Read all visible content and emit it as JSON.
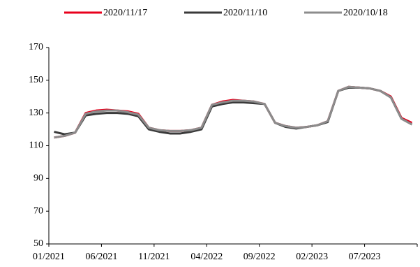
{
  "chart_data": {
    "type": "line",
    "categories": [
      "01/2021",
      null,
      null,
      null,
      null,
      "06/2021",
      null,
      null,
      null,
      null,
      "11/2021",
      null,
      null,
      null,
      null,
      "04/2022",
      null,
      null,
      null,
      null,
      "09/2022",
      null,
      null,
      null,
      null,
      "02/2023",
      null,
      null,
      null,
      null,
      "07/2023",
      null,
      null,
      null,
      null
    ],
    "series": [
      {
        "name": "2020/11/17",
        "color": "#e8001c",
        "values": [
          115,
          116,
          118,
          130,
          131.5,
          132,
          131.5,
          131,
          129.5,
          121,
          119.5,
          119,
          119,
          119.5,
          121,
          135,
          137,
          138,
          137.5,
          137,
          135.5,
          124,
          122,
          121,
          121.5,
          122.5,
          125,
          143.5,
          146,
          145.5,
          145,
          143.5,
          140,
          127,
          124
        ]
      },
      {
        "name": "2020/11/10",
        "color": "#3a3a3a",
        "values": [
          118.5,
          117,
          118,
          128.5,
          129.5,
          130,
          130,
          129.5,
          128,
          120,
          118.5,
          117.5,
          117.5,
          118.5,
          120,
          134,
          135.5,
          136.5,
          136.5,
          136,
          135.5,
          124,
          121.5,
          120.5,
          121.5,
          122.5,
          124.5,
          143.5,
          145.5,
          145.5,
          145,
          143.5,
          139.5,
          126.5,
          123
        ]
      },
      {
        "name": "2020/10/18",
        "color": "#8c8c8c",
        "values": [
          115,
          116,
          118,
          129.5,
          131,
          131.5,
          131.5,
          130.5,
          129,
          121,
          119.5,
          119,
          119,
          119.5,
          121,
          135,
          136.5,
          137.5,
          137.5,
          137,
          135.5,
          124,
          122,
          121,
          121.5,
          122.5,
          125,
          143.5,
          146,
          145.5,
          145,
          143.5,
          139.5,
          126.5,
          123
        ]
      }
    ],
    "ylim": [
      50,
      170
    ],
    "yticks": [
      50,
      70,
      90,
      110,
      130,
      150,
      170
    ]
  }
}
